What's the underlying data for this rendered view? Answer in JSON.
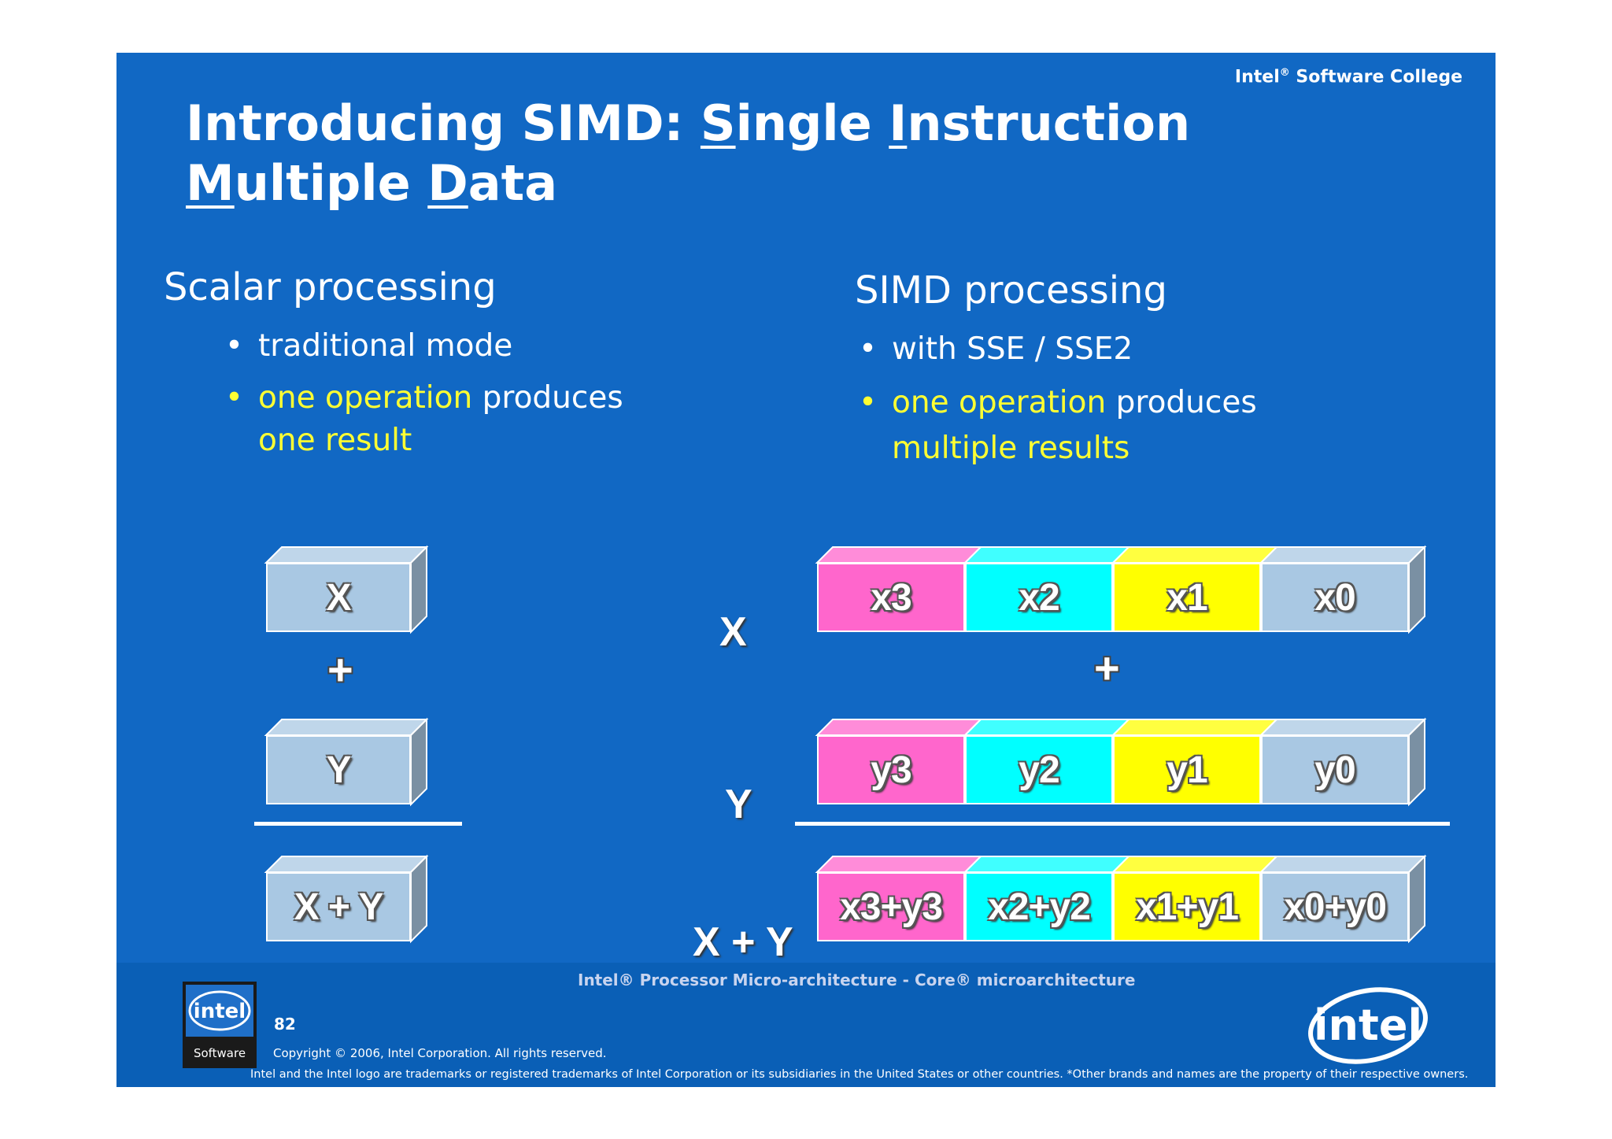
{
  "header": {
    "college": "Intel",
    "college_reg": "®",
    "college_rest": " Software College",
    "title_parts": [
      "Introducing SIMD: ",
      "S",
      "ingle ",
      "I",
      "nstruction",
      "M",
      "ultiple ",
      "D",
      "ata"
    ]
  },
  "scalar": {
    "heading": "Scalar processing",
    "bullet1": "traditional mode",
    "bullet2_y": "one operation",
    "bullet2_w": " produces",
    "bullet2_line2": "one result"
  },
  "simd": {
    "heading": "SIMD processing",
    "bullet1": "with SSE / SSE2",
    "bullet2_y": "one operation",
    "bullet2_w": " produces",
    "bullet2_line2": "multiple results"
  },
  "bullet_glyph": "•",
  "diagram": {
    "scalar_x": "X",
    "scalar_y": "Y",
    "scalar_sum": "X + Y",
    "plus": "+",
    "row_labels": [
      "X",
      "Y",
      "X + Y"
    ],
    "x_lanes": [
      "x3",
      "x2",
      "x1",
      "x0"
    ],
    "y_lanes": [
      "y3",
      "y2",
      "y1",
      "y0"
    ],
    "sum_lanes": [
      "x3+y3",
      "x2+y2",
      "x1+y1",
      "x0+y0"
    ],
    "lane_colors": [
      "#ff66cc",
      "#00ffff",
      "#ffff00",
      "#a9c8e3"
    ],
    "scalar_color": "#a9c8e3"
  },
  "footer": {
    "title": "Intel® Processor Micro-architecture - Core® microarchitecture",
    "page": "82",
    "copyright": "Copyright © 2006, Intel Corporation. All rights reserved.",
    "trademark": "Intel and the Intel logo are trademarks or registered trademarks of Intel Corporation or its subsidiaries in the United States or other countries. *Other brands and names are the property of their respective owners.",
    "sw_logo_word": "intel",
    "sw_logo_sub": "Software",
    "intel_logo_word": "intel"
  }
}
